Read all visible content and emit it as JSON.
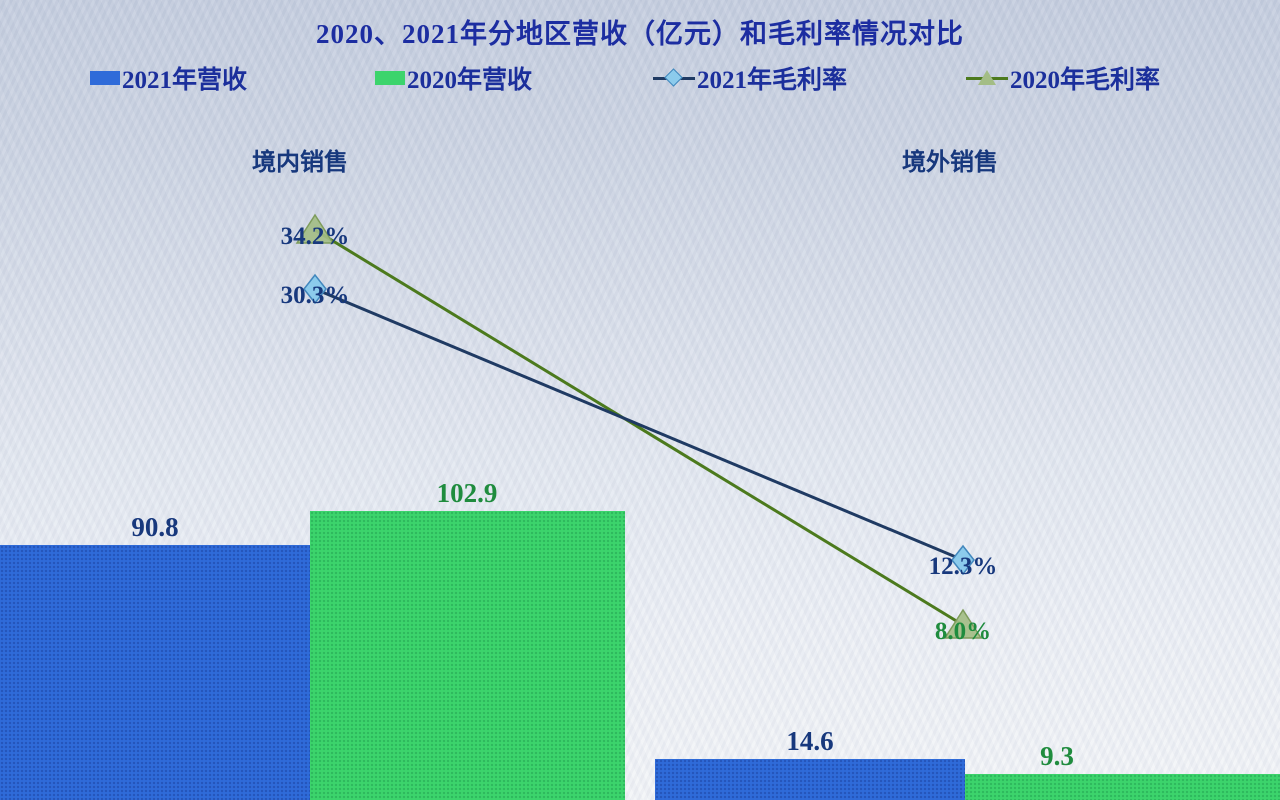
{
  "chart": {
    "title": "2020、2021年分地区营收（亿元）和毛利率情况对比",
    "legend": [
      {
        "label": "2021年营收",
        "type": "bar",
        "color": "#2f6bd9"
      },
      {
        "label": "2020年营收",
        "type": "bar",
        "color": "#3cd46c"
      },
      {
        "label": "2021年毛利率",
        "type": "line-diamond",
        "color": "#1f3a63"
      },
      {
        "label": "2020年毛利率",
        "type": "line-triangle",
        "color": "#4c7a1d"
      }
    ]
  },
  "chart_data": {
    "type": "combo",
    "subtype": "bars-plus-lines",
    "categories": [
      "境内销售",
      "境外销售"
    ],
    "bar_series": [
      {
        "name": "2021年营收",
        "values": [
          90.8,
          14.6
        ],
        "labels": [
          "90.8",
          "14.6"
        ],
        "color": "#2f6bd9",
        "unit": "亿元"
      },
      {
        "name": "2020年营收",
        "values": [
          102.9,
          9.3
        ],
        "labels": [
          "102.9",
          "9.3"
        ],
        "color": "#3cd46c",
        "unit": "亿元"
      }
    ],
    "line_series": [
      {
        "name": "2021年毛利率",
        "values": [
          30.3,
          12.3
        ],
        "labels": [
          "30.3%",
          "12.3%"
        ],
        "color": "#1f3a63",
        "marker": "diamond"
      },
      {
        "name": "2020年毛利率",
        "values": [
          34.2,
          8.0
        ],
        "labels": [
          "34.2%",
          "8.0%"
        ],
        "color": "#4c7a1d",
        "marker": "triangle"
      }
    ],
    "axes": {
      "x_axis_visible": false,
      "y_axis_visible": false,
      "gridlines": false,
      "legend_position": "top"
    },
    "colors": {
      "title": "#1c2da1",
      "navy_label": "#17387d",
      "green_label": "#1f8c3e",
      "background_top": "#c5cedf",
      "background_bottom": "#f3f5f8"
    }
  }
}
